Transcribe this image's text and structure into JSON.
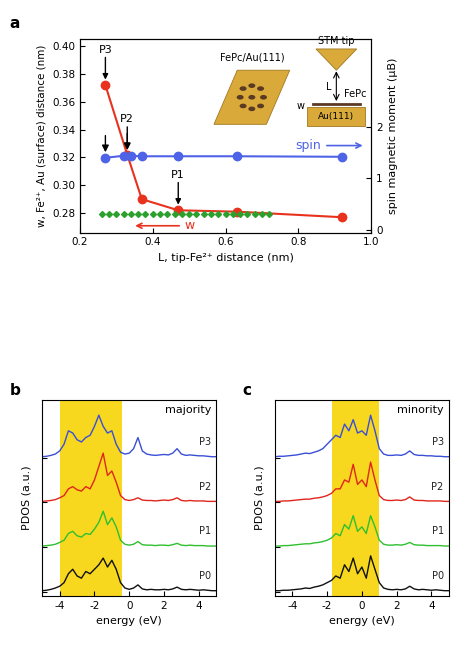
{
  "chart_data": [
    {
      "type": "line",
      "panel": "a",
      "x_label": "L, tip-Fe²⁺ distance (nm)",
      "y_label": "w, Fe²⁺, Au (surface) distance (nm)",
      "y2_label": "spin magnetic moment (μB)",
      "xlim": [
        0.2,
        1.0
      ],
      "xticks": [
        0.2,
        0.4,
        0.6,
        0.8,
        1.0
      ],
      "ylim": [
        0.266,
        0.405
      ],
      "yticks": [
        0.28,
        {
          "value": 0.3,
          "label": "0.30"
        },
        0.32,
        0.34,
        0.36,
        0.38,
        {
          "value": 0.4,
          "label": "0.40"
        }
      ],
      "y2lim": [
        -0.05,
        3.7
      ],
      "y2ticks": [
        0,
        1,
        2
      ],
      "series": [
        {
          "name": "w",
          "color": "#e8321e",
          "marker": "o",
          "line_style": "solid",
          "x": [
            0.27,
            0.33,
            0.37,
            0.47,
            0.63,
            0.92
          ],
          "values": [
            0.372,
            0.322,
            0.29,
            0.282,
            0.281,
            0.277
          ]
        },
        {
          "name": "spin",
          "color": "#4f63e6",
          "marker": "o",
          "line_style": "solid",
          "axis": "y2",
          "x": [
            0.27,
            0.32,
            0.34,
            0.37,
            0.47,
            0.63,
            0.92
          ],
          "values": [
            1.4,
            1.44,
            1.44,
            1.43,
            1.43,
            1.43,
            1.42
          ]
        },
        {
          "color": "#2ca02c",
          "marker": "D",
          "line_style": "none",
          "x": [
            0.26,
            0.28,
            0.3,
            0.32,
            0.34,
            0.36,
            0.38,
            0.4,
            0.42,
            0.44,
            0.46,
            0.48,
            0.5,
            0.52,
            0.54,
            0.56,
            0.58,
            0.6,
            0.62,
            0.64,
            0.66,
            0.68,
            0.7,
            0.72
          ],
          "values": [
            0.279,
            0.279,
            0.279,
            0.279,
            0.279,
            0.279,
            0.279,
            0.279,
            0.279,
            0.279,
            0.279,
            0.279,
            0.279,
            0.279,
            0.279,
            0.279,
            0.279,
            0.279,
            0.279,
            0.279,
            0.279,
            0.279,
            0.279,
            0.279
          ]
        }
      ],
      "annotations": [
        {
          "text": "P3",
          "x": 0.27,
          "y": 0.372
        },
        {
          "text": "P2",
          "x": 0.33,
          "y": 0.322
        },
        {
          "text": "P1",
          "x": 0.47,
          "y": 0.282
        }
      ],
      "inset": {
        "title": "FePc/Au(111)",
        "tip": "STM tip",
        "molecule": "FePc",
        "surface": "Au(111)",
        "distance": "L",
        "height": "w"
      }
    },
    {
      "type": "line",
      "panel": "b",
      "title": "majority",
      "x_label": "energy (eV)",
      "y_label": "PDOS (a.u.)",
      "xlim": [
        -5,
        5
      ],
      "xticks": [
        -4,
        -2,
        0,
        2,
        4
      ],
      "ylim": [
        -0.1,
        4.3
      ],
      "yticks": [
        0,
        1,
        2,
        3
      ],
      "tick_labels": "x",
      "shaded_range": [
        -4.0,
        -0.4
      ],
      "x": [
        -5,
        -4.75,
        -4.5,
        -4.25,
        -4,
        -3.75,
        -3.5,
        -3.25,
        -3,
        -2.75,
        -2.5,
        -2.25,
        -2,
        -1.75,
        -1.5,
        -1.25,
        -1,
        -0.75,
        -0.5,
        -0.25,
        0,
        0.25,
        0.5,
        0.75,
        1,
        1.25,
        1.5,
        1.75,
        2,
        2.25,
        2.5,
        2.75,
        3,
        3.25,
        3.5,
        3.75,
        4,
        4.25,
        4.5,
        4.75,
        5
      ],
      "series": [
        {
          "name": "P3",
          "color": "#3a4fd6",
          "values": [
            3.02,
            3.03,
            3.05,
            3.08,
            3.15,
            3.3,
            3.6,
            3.55,
            3.4,
            3.35,
            3.45,
            3.5,
            3.7,
            3.95,
            3.7,
            3.55,
            3.6,
            3.3,
            3.12,
            3.08,
            3.1,
            3.2,
            3.45,
            3.15,
            3.08,
            3.06,
            3.05,
            3.06,
            3.07,
            3.06,
            3.1,
            3.2,
            3.08,
            3.05,
            3.06,
            3.05,
            3.04,
            3.04,
            3.03,
            3.02,
            3.02
          ]
        },
        {
          "name": "P2",
          "color": "#e0251b",
          "values": [
            2.02,
            2.03,
            2.04,
            2.06,
            2.1,
            2.15,
            2.3,
            2.35,
            2.28,
            2.25,
            2.35,
            2.3,
            2.5,
            2.8,
            3.1,
            2.6,
            2.7,
            2.45,
            2.15,
            2.06,
            2.04,
            2.06,
            2.1,
            2.05,
            2.04,
            2.04,
            2.03,
            2.04,
            2.05,
            2.04,
            2.06,
            2.1,
            2.04,
            2.03,
            2.04,
            2.03,
            2.03,
            2.03,
            2.02,
            2.02,
            2.02
          ]
        },
        {
          "name": "P1",
          "color": "#2fbf2f",
          "values": [
            1.02,
            1.03,
            1.04,
            1.06,
            1.1,
            1.15,
            1.3,
            1.35,
            1.25,
            1.22,
            1.3,
            1.28,
            1.4,
            1.55,
            1.8,
            1.5,
            1.65,
            1.45,
            1.15,
            1.06,
            1.04,
            1.06,
            1.12,
            1.05,
            1.04,
            1.04,
            1.03,
            1.04,
            1.04,
            1.03,
            1.05,
            1.08,
            1.04,
            1.03,
            1.04,
            1.03,
            1.03,
            1.03,
            1.02,
            1.02,
            1.02
          ]
        },
        {
          "name": "P0",
          "color": "#111111",
          "values": [
            0.02,
            0.03,
            0.05,
            0.08,
            0.12,
            0.2,
            0.4,
            0.5,
            0.35,
            0.3,
            0.45,
            0.4,
            0.5,
            0.6,
            0.75,
            0.55,
            0.7,
            0.5,
            0.2,
            0.08,
            0.05,
            0.08,
            0.15,
            0.06,
            0.04,
            0.05,
            0.04,
            0.04,
            0.05,
            0.04,
            0.06,
            0.1,
            0.05,
            0.04,
            0.05,
            0.04,
            0.03,
            0.04,
            0.03,
            0.02,
            0.02
          ]
        }
      ]
    },
    {
      "type": "line",
      "panel": "c",
      "title": "minority",
      "x_label": "energy (eV)",
      "y_label": "PDOS (a.u.)",
      "xlim": [
        -5,
        5
      ],
      "xticks": [
        -4,
        -2,
        0,
        2,
        4
      ],
      "ylim": [
        -0.1,
        4.3
      ],
      "yticks": [
        0,
        1,
        2,
        3
      ],
      "tick_labels": "x",
      "shaded_range": [
        -1.7,
        1.0
      ],
      "x": [
        -5,
        -4.75,
        -4.5,
        -4.25,
        -4,
        -3.75,
        -3.5,
        -3.25,
        -3,
        -2.75,
        -2.5,
        -2.25,
        -2,
        -1.75,
        -1.5,
        -1.25,
        -1,
        -0.75,
        -0.5,
        -0.25,
        0,
        0.25,
        0.5,
        0.75,
        1,
        1.25,
        1.5,
        1.75,
        2,
        2.25,
        2.5,
        2.75,
        3,
        3.25,
        3.5,
        3.75,
        4,
        4.25,
        4.5,
        4.75,
        5
      ],
      "series": [
        {
          "name": "P3",
          "color": "#3a4fd6",
          "values": [
            3.02,
            3.03,
            3.03,
            3.04,
            3.05,
            3.06,
            3.08,
            3.1,
            3.09,
            3.12,
            3.15,
            3.2,
            3.3,
            3.4,
            3.5,
            3.45,
            3.75,
            3.6,
            3.85,
            3.55,
            3.6,
            3.5,
            3.95,
            3.6,
            3.2,
            3.08,
            3.05,
            3.05,
            3.06,
            3.05,
            3.08,
            3.15,
            3.07,
            3.05,
            3.05,
            3.04,
            3.04,
            3.03,
            3.03,
            3.02,
            3.02
          ]
        },
        {
          "name": "P2",
          "color": "#e0251b",
          "values": [
            2.02,
            2.02,
            2.03,
            2.03,
            2.04,
            2.05,
            2.06,
            2.07,
            2.07,
            2.09,
            2.1,
            2.12,
            2.15,
            2.2,
            2.3,
            2.3,
            2.5,
            2.45,
            2.85,
            2.4,
            2.5,
            2.35,
            2.9,
            2.5,
            2.15,
            2.06,
            2.04,
            2.04,
            2.05,
            2.04,
            2.06,
            2.12,
            2.05,
            2.04,
            2.04,
            2.03,
            2.03,
            2.03,
            2.03,
            2.02,
            2.02
          ]
        },
        {
          "name": "P1",
          "color": "#2fbf2f",
          "values": [
            1.02,
            1.02,
            1.03,
            1.03,
            1.04,
            1.05,
            1.06,
            1.07,
            1.07,
            1.09,
            1.1,
            1.12,
            1.15,
            1.2,
            1.3,
            1.25,
            1.5,
            1.4,
            1.7,
            1.35,
            1.45,
            1.3,
            1.7,
            1.45,
            1.15,
            1.06,
            1.04,
            1.04,
            1.05,
            1.04,
            1.06,
            1.1,
            1.05,
            1.04,
            1.04,
            1.03,
            1.03,
            1.03,
            1.03,
            1.02,
            1.02
          ]
        },
        {
          "name": "P0",
          "color": "#111111",
          "values": [
            0.02,
            0.02,
            0.03,
            0.03,
            0.04,
            0.05,
            0.06,
            0.08,
            0.07,
            0.1,
            0.12,
            0.15,
            0.2,
            0.25,
            0.35,
            0.3,
            0.6,
            0.45,
            0.75,
            0.4,
            0.55,
            0.3,
            0.8,
            0.5,
            0.2,
            0.08,
            0.05,
            0.04,
            0.05,
            0.04,
            0.06,
            0.12,
            0.06,
            0.04,
            0.05,
            0.04,
            0.03,
            0.04,
            0.03,
            0.02,
            0.02
          ]
        }
      ]
    }
  ]
}
